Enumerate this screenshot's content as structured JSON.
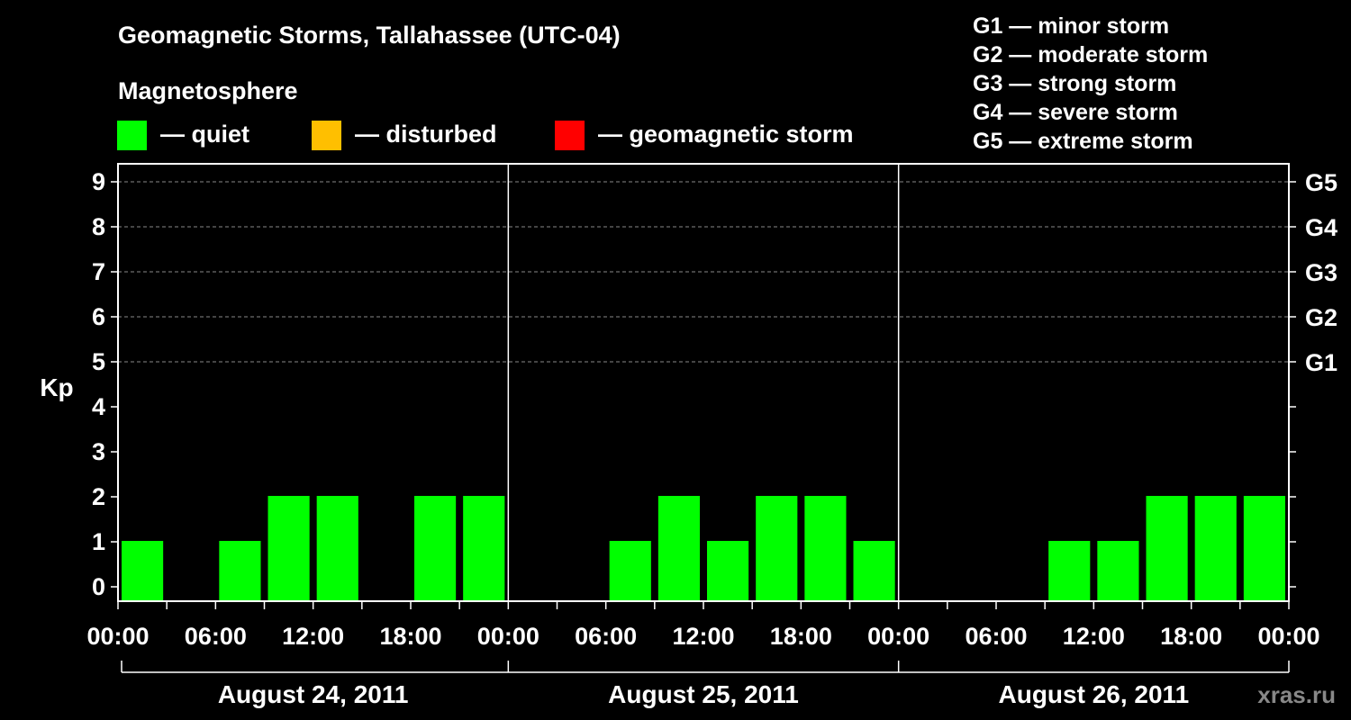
{
  "header": {
    "title": "Geomagnetic Storms, Tallahassee (UTC-04)",
    "subtitle": "Magnetosphere"
  },
  "legend": {
    "quiet": {
      "label": "— quiet",
      "color": "#00ff00"
    },
    "disturbed": {
      "label": "— disturbed",
      "color": "#ffbf00"
    },
    "storm": {
      "label": "— geomagnetic storm",
      "color": "#ff0000"
    }
  },
  "storm_scale": [
    "G1 — minor storm",
    "G2 — moderate storm",
    "G3 — strong storm",
    "G4 — severe storm",
    "G5 — extreme storm"
  ],
  "watermark": "xras.ru",
  "chart_data": {
    "type": "bar",
    "ylabel": "Kp",
    "ylim": [
      0,
      9
    ],
    "yticks": [
      "0",
      "1",
      "2",
      "3",
      "4",
      "5",
      "6",
      "7",
      "8",
      "9"
    ],
    "right_ticks": [
      {
        "kp": 5,
        "label": "G1"
      },
      {
        "kp": 6,
        "label": "G2"
      },
      {
        "kp": 7,
        "label": "G3"
      },
      {
        "kp": 8,
        "label": "G4"
      },
      {
        "kp": 9,
        "label": "G5"
      }
    ],
    "grid": "dashed at Kp 5-9",
    "xticks": [
      "00:00",
      "06:00",
      "12:00",
      "18:00",
      "00:00",
      "06:00",
      "12:00",
      "18:00",
      "00:00",
      "06:00",
      "12:00",
      "18:00",
      "00:00"
    ],
    "days": [
      {
        "label": "August 24, 2011",
        "bars": [
          {
            "start": "00:00",
            "kp": 1
          },
          {
            "start": "06:00",
            "kp": 1
          },
          {
            "start": "09:00",
            "kp": 2
          },
          {
            "start": "12:00",
            "kp": 2
          },
          {
            "start": "18:00",
            "kp": 2
          },
          {
            "start": "21:00",
            "kp": 2
          }
        ]
      },
      {
        "label": "August 25, 2011",
        "bars": [
          {
            "start": "06:00",
            "kp": 1
          },
          {
            "start": "09:00",
            "kp": 2
          },
          {
            "start": "12:00",
            "kp": 1
          },
          {
            "start": "15:00",
            "kp": 2
          },
          {
            "start": "18:00",
            "kp": 2
          },
          {
            "start": "21:00",
            "kp": 1
          }
        ]
      },
      {
        "label": "August 26, 2011",
        "bars": [
          {
            "start": "09:00",
            "kp": 1
          },
          {
            "start": "12:00",
            "kp": 1
          },
          {
            "start": "15:00",
            "kp": 2
          },
          {
            "start": "18:00",
            "kp": 2
          },
          {
            "start": "21:00",
            "kp": 2
          }
        ]
      }
    ]
  }
}
